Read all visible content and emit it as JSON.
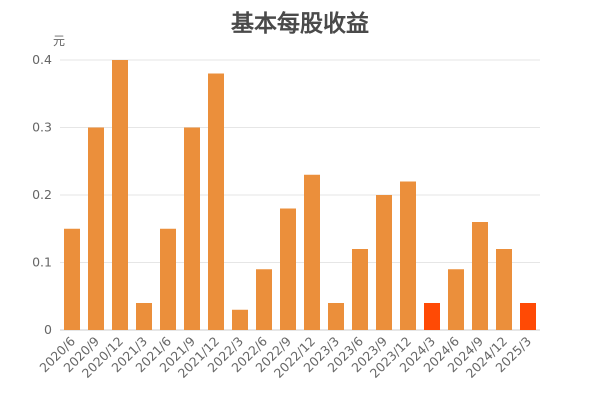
{
  "chart_data": {
    "type": "bar",
    "title": "基本每股收益",
    "y_unit": "元",
    "xlabel": "",
    "ylabel": "",
    "ylim": [
      0,
      0.4
    ],
    "y_ticks": [
      "0",
      "0.1",
      "0.2",
      "0.3",
      "0.4"
    ],
    "grid": true,
    "legend": "none",
    "categories": [
      "2020/6",
      "2020/9",
      "2020/12",
      "2021/3",
      "2021/6",
      "2021/9",
      "2021/12",
      "2022/3",
      "2022/6",
      "2022/9",
      "2022/12",
      "2023/3",
      "2023/6",
      "2023/9",
      "2023/12",
      "2024/3",
      "2024/6",
      "2024/9",
      "2024/12",
      "2025/3"
    ],
    "values": [
      0.15,
      0.3,
      0.4,
      0.04,
      0.15,
      0.3,
      0.38,
      0.03,
      0.09,
      0.18,
      0.23,
      0.04,
      0.12,
      0.2,
      0.22,
      0.04,
      0.09,
      0.16,
      0.12,
      0.04
    ],
    "highlighted": [
      "2024/3",
      "2025/3"
    ],
    "colors": {
      "bar": "#eb8f3b",
      "highlight": "#ff4a05"
    }
  }
}
